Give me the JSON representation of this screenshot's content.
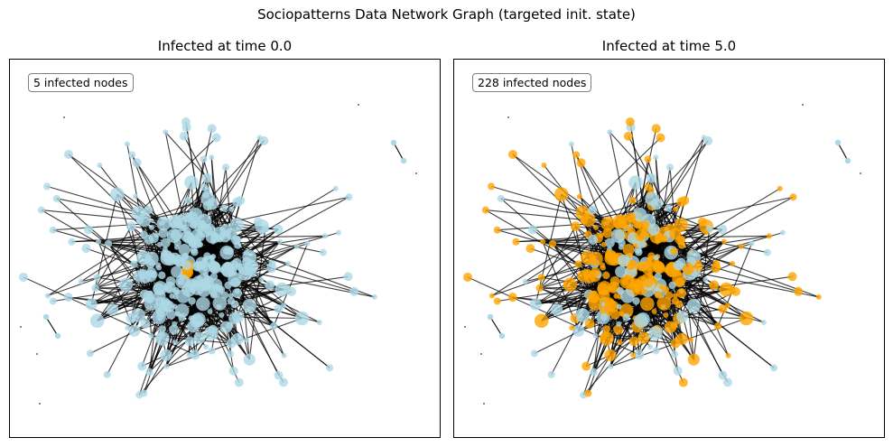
{
  "figure": {
    "title": "Sociopatterns Data Network Graph (targeted init. state)"
  },
  "colors": {
    "susceptible": "#add8e6",
    "infected": "#ffa500",
    "edge": "#000000",
    "frame": "#000000"
  },
  "chart_data": [
    {
      "type": "network",
      "title": "Infected at time 0.0",
      "annotation": "5 infected nodes",
      "infected_nodes": 5,
      "time": 0.0,
      "node_colors": [
        "susceptible",
        "infected"
      ]
    },
    {
      "type": "network",
      "title": "Infected at time 5.0",
      "annotation": "228 infected nodes",
      "infected_nodes": 228,
      "time": 5.0,
      "node_colors": [
        "susceptible",
        "infected"
      ]
    }
  ]
}
